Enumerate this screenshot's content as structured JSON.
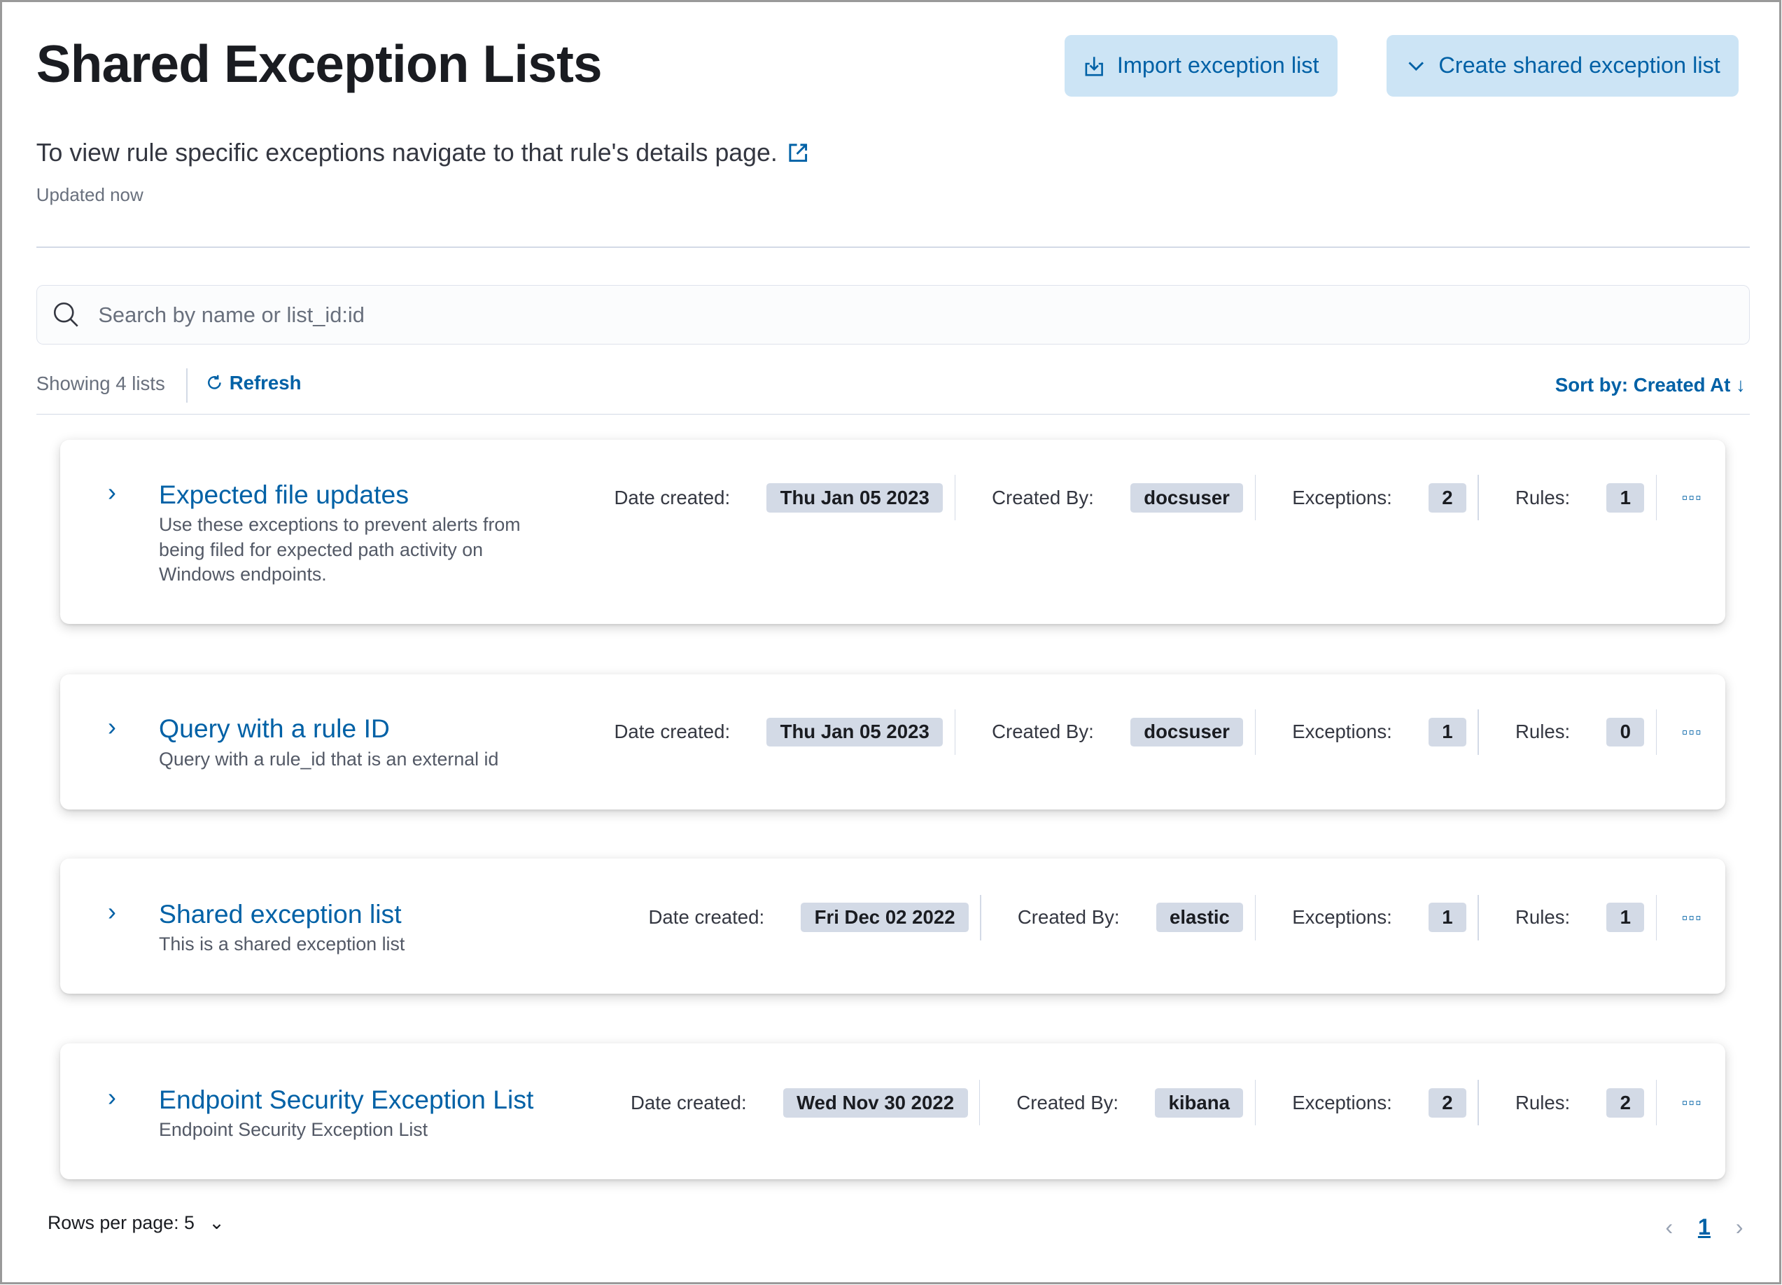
{
  "header": {
    "title": "Shared Exception Lists",
    "import_label": "Import exception list",
    "create_label": "Create shared exception list",
    "description": "To view rule specific exceptions navigate to that rule's details page.",
    "updated": "Updated now"
  },
  "search": {
    "placeholder": "Search by name or list_id:id",
    "value": ""
  },
  "toolbar": {
    "showing": "Showing 4 lists",
    "refresh": "Refresh",
    "sort": "Sort by: Created At ↓"
  },
  "labels": {
    "date": "Date created:",
    "by": "Created By:",
    "exceptions": "Exceptions:",
    "rules": "Rules:"
  },
  "lists": [
    {
      "name": "Expected file updates",
      "description": "Use these exceptions to prevent alerts from being filed for expected path activity on Windows endpoints.",
      "date": "Thu Jan 05 2023",
      "by": "docsuser",
      "exceptions": "2",
      "rules": "1"
    },
    {
      "name": "Query with a rule ID",
      "description": "Query with a rule_id that is an external id",
      "date": "Thu Jan 05 2023",
      "by": "docsuser",
      "exceptions": "1",
      "rules": "0"
    },
    {
      "name": "Shared exception list",
      "description": "This is a shared exception list",
      "date": "Fri Dec 02 2022",
      "by": "elastic",
      "exceptions": "1",
      "rules": "1"
    },
    {
      "name": "Endpoint Security Exception List",
      "description": "Endpoint Security Exception List",
      "date": "Wed Nov 30 2022",
      "by": "kibana",
      "exceptions": "2",
      "rules": "2"
    }
  ],
  "pagination": {
    "rows_per_page": "Rows per page: 5",
    "current_page": "1"
  },
  "colors": {
    "accent": "#0061a6",
    "button_bg": "#cce4f5",
    "badge_bg": "#d3dae6"
  }
}
